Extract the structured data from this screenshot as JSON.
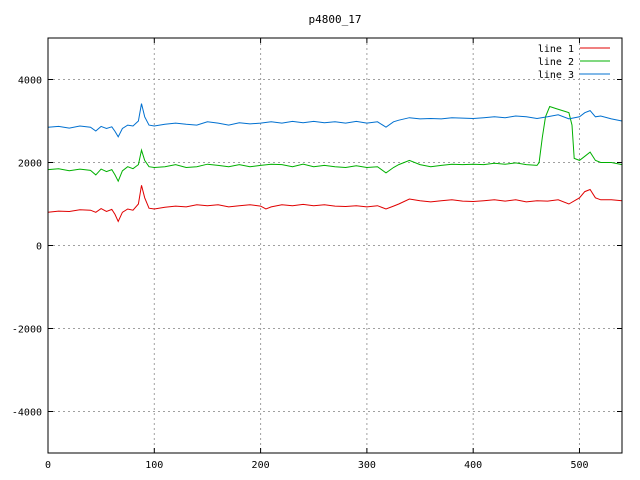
{
  "chart_data": {
    "type": "line",
    "title": "p4800_17",
    "xlabel": "",
    "ylabel": "",
    "xlim": [
      0,
      540
    ],
    "ylim": [
      -5000,
      5000
    ],
    "x_ticks": [
      0,
      100,
      200,
      300,
      400,
      500
    ],
    "y_ticks": [
      -4000,
      -2000,
      0,
      2000,
      4000
    ],
    "grid": true,
    "legend_position": "top-right",
    "series": [
      {
        "name": "line 1",
        "color": "#e00000",
        "points": [
          [
            0,
            800
          ],
          [
            10,
            830
          ],
          [
            20,
            820
          ],
          [
            30,
            860
          ],
          [
            40,
            850
          ],
          [
            45,
            800
          ],
          [
            50,
            890
          ],
          [
            55,
            820
          ],
          [
            60,
            870
          ],
          [
            63,
            750
          ],
          [
            66,
            580
          ],
          [
            70,
            800
          ],
          [
            75,
            880
          ],
          [
            80,
            850
          ],
          [
            85,
            1000
          ],
          [
            88,
            1450
          ],
          [
            91,
            1150
          ],
          [
            95,
            900
          ],
          [
            100,
            880
          ],
          [
            110,
            920
          ],
          [
            120,
            950
          ],
          [
            130,
            930
          ],
          [
            140,
            980
          ],
          [
            150,
            960
          ],
          [
            160,
            980
          ],
          [
            170,
            930
          ],
          [
            180,
            960
          ],
          [
            190,
            980
          ],
          [
            200,
            950
          ],
          [
            205,
            880
          ],
          [
            210,
            930
          ],
          [
            220,
            980
          ],
          [
            230,
            960
          ],
          [
            240,
            990
          ],
          [
            250,
            960
          ],
          [
            260,
            980
          ],
          [
            270,
            950
          ],
          [
            280,
            940
          ],
          [
            290,
            960
          ],
          [
            300,
            930
          ],
          [
            310,
            960
          ],
          [
            318,
            880
          ],
          [
            325,
            950
          ],
          [
            330,
            1000
          ],
          [
            340,
            1120
          ],
          [
            350,
            1080
          ],
          [
            360,
            1050
          ],
          [
            370,
            1080
          ],
          [
            380,
            1100
          ],
          [
            390,
            1070
          ],
          [
            400,
            1060
          ],
          [
            410,
            1080
          ],
          [
            420,
            1100
          ],
          [
            430,
            1070
          ],
          [
            440,
            1100
          ],
          [
            450,
            1050
          ],
          [
            460,
            1080
          ],
          [
            470,
            1070
          ],
          [
            480,
            1100
          ],
          [
            490,
            1000
          ],
          [
            500,
            1150
          ],
          [
            505,
            1300
          ],
          [
            510,
            1350
          ],
          [
            515,
            1150
          ],
          [
            520,
            1100
          ],
          [
            530,
            1100
          ],
          [
            540,
            1080
          ]
        ]
      },
      {
        "name": "line 2",
        "color": "#00b000",
        "points": [
          [
            0,
            1830
          ],
          [
            10,
            1850
          ],
          [
            20,
            1800
          ],
          [
            30,
            1840
          ],
          [
            40,
            1810
          ],
          [
            45,
            1700
          ],
          [
            50,
            1840
          ],
          [
            55,
            1780
          ],
          [
            60,
            1830
          ],
          [
            63,
            1700
          ],
          [
            66,
            1550
          ],
          [
            70,
            1800
          ],
          [
            75,
            1900
          ],
          [
            80,
            1850
          ],
          [
            85,
            1950
          ],
          [
            88,
            2300
          ],
          [
            91,
            2050
          ],
          [
            95,
            1900
          ],
          [
            100,
            1880
          ],
          [
            110,
            1900
          ],
          [
            120,
            1950
          ],
          [
            130,
            1880
          ],
          [
            140,
            1900
          ],
          [
            150,
            1960
          ],
          [
            160,
            1930
          ],
          [
            170,
            1900
          ],
          [
            180,
            1950
          ],
          [
            190,
            1900
          ],
          [
            200,
            1930
          ],
          [
            210,
            1960
          ],
          [
            220,
            1950
          ],
          [
            230,
            1900
          ],
          [
            240,
            1960
          ],
          [
            250,
            1900
          ],
          [
            260,
            1930
          ],
          [
            270,
            1900
          ],
          [
            280,
            1880
          ],
          [
            290,
            1920
          ],
          [
            300,
            1880
          ],
          [
            310,
            1900
          ],
          [
            318,
            1750
          ],
          [
            325,
            1880
          ],
          [
            330,
            1950
          ],
          [
            340,
            2050
          ],
          [
            350,
            1950
          ],
          [
            360,
            1900
          ],
          [
            370,
            1930
          ],
          [
            380,
            1960
          ],
          [
            390,
            1950
          ],
          [
            400,
            1960
          ],
          [
            410,
            1950
          ],
          [
            420,
            1980
          ],
          [
            430,
            1960
          ],
          [
            440,
            1990
          ],
          [
            450,
            1950
          ],
          [
            460,
            1930
          ],
          [
            462,
            2000
          ],
          [
            465,
            2600
          ],
          [
            468,
            3100
          ],
          [
            472,
            3350
          ],
          [
            478,
            3300
          ],
          [
            484,
            3250
          ],
          [
            490,
            3200
          ],
          [
            493,
            2900
          ],
          [
            495,
            2100
          ],
          [
            500,
            2050
          ],
          [
            505,
            2150
          ],
          [
            510,
            2250
          ],
          [
            515,
            2050
          ],
          [
            520,
            2000
          ],
          [
            530,
            2000
          ],
          [
            540,
            1950
          ]
        ]
      },
      {
        "name": "line 3",
        "color": "#0070d0",
        "points": [
          [
            0,
            2850
          ],
          [
            10,
            2870
          ],
          [
            20,
            2830
          ],
          [
            30,
            2880
          ],
          [
            40,
            2850
          ],
          [
            45,
            2760
          ],
          [
            50,
            2870
          ],
          [
            55,
            2820
          ],
          [
            60,
            2860
          ],
          [
            63,
            2750
          ],
          [
            66,
            2620
          ],
          [
            70,
            2820
          ],
          [
            75,
            2900
          ],
          [
            80,
            2880
          ],
          [
            85,
            3000
          ],
          [
            88,
            3420
          ],
          [
            91,
            3100
          ],
          [
            95,
            2900
          ],
          [
            100,
            2880
          ],
          [
            110,
            2920
          ],
          [
            120,
            2950
          ],
          [
            130,
            2920
          ],
          [
            140,
            2900
          ],
          [
            150,
            2980
          ],
          [
            160,
            2950
          ],
          [
            170,
            2900
          ],
          [
            180,
            2960
          ],
          [
            190,
            2930
          ],
          [
            200,
            2950
          ],
          [
            210,
            2980
          ],
          [
            220,
            2950
          ],
          [
            230,
            2990
          ],
          [
            240,
            2960
          ],
          [
            250,
            2990
          ],
          [
            260,
            2960
          ],
          [
            270,
            2980
          ],
          [
            280,
            2950
          ],
          [
            290,
            2990
          ],
          [
            300,
            2950
          ],
          [
            310,
            2980
          ],
          [
            318,
            2850
          ],
          [
            325,
            2980
          ],
          [
            330,
            3020
          ],
          [
            340,
            3080
          ],
          [
            350,
            3050
          ],
          [
            360,
            3060
          ],
          [
            370,
            3050
          ],
          [
            380,
            3080
          ],
          [
            390,
            3070
          ],
          [
            400,
            3060
          ],
          [
            410,
            3080
          ],
          [
            420,
            3100
          ],
          [
            430,
            3080
          ],
          [
            440,
            3120
          ],
          [
            450,
            3100
          ],
          [
            460,
            3060
          ],
          [
            470,
            3100
          ],
          [
            480,
            3150
          ],
          [
            490,
            3050
          ],
          [
            500,
            3100
          ],
          [
            505,
            3200
          ],
          [
            510,
            3250
          ],
          [
            515,
            3100
          ],
          [
            520,
            3120
          ],
          [
            530,
            3050
          ],
          [
            540,
            3000
          ]
        ]
      }
    ]
  }
}
